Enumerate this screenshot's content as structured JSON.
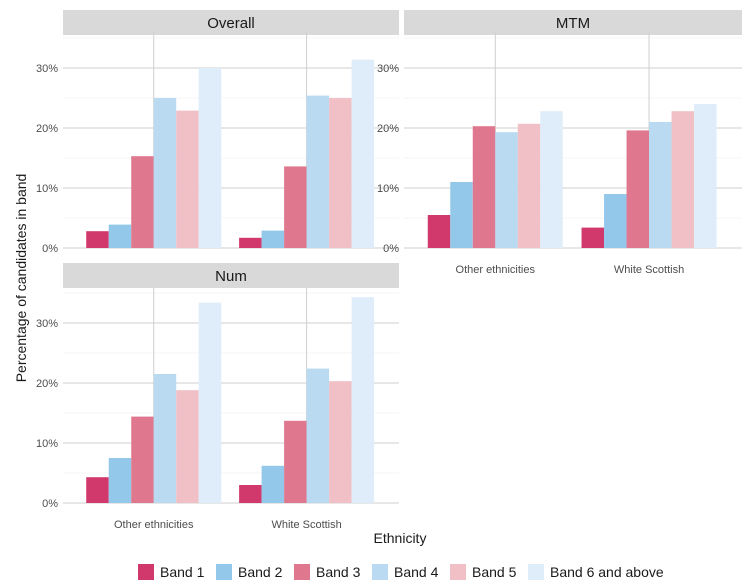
{
  "chart_data": {
    "type": "bar",
    "xlabel": "Ethnicity",
    "ylabel": "Percentage of candidates in band",
    "ylim": [
      0,
      36
    ],
    "yticks": [
      0,
      10,
      20,
      30
    ],
    "ytick_labels": [
      "0%",
      "10%",
      "20%",
      "30%"
    ],
    "grid": true,
    "legend_position": "bottom",
    "categories": [
      "Other ethnicities",
      "White Scottish"
    ],
    "bands": [
      {
        "name": "Band 1",
        "color": "#d1386c"
      },
      {
        "name": "Band 2",
        "color": "#94c8ea"
      },
      {
        "name": "Band 3",
        "color": "#df788e"
      },
      {
        "name": "Band 4",
        "color": "#b9daf1"
      },
      {
        "name": "Band 5",
        "color": "#f0c0c6"
      },
      {
        "name": "Band 6 and above",
        "color": "#deedf9"
      }
    ],
    "panels": [
      {
        "title": "Overall",
        "show_x_labels": false,
        "values": [
          [
            2.8,
            3.9,
            15.3,
            25.0,
            22.9,
            30.0
          ],
          [
            1.7,
            2.9,
            13.6,
            25.4,
            25.0,
            31.4
          ]
        ]
      },
      {
        "title": "MTM",
        "show_x_labels": true,
        "values": [
          [
            5.5,
            11.0,
            20.3,
            19.3,
            20.7,
            22.8
          ],
          [
            3.4,
            9.0,
            19.6,
            21.0,
            22.8,
            24.0
          ]
        ]
      },
      {
        "title": "Num",
        "show_x_labels": true,
        "values": [
          [
            4.3,
            7.5,
            14.4,
            21.5,
            18.8,
            33.4
          ],
          [
            3.0,
            6.2,
            13.7,
            22.4,
            20.3,
            34.3
          ]
        ]
      }
    ]
  }
}
